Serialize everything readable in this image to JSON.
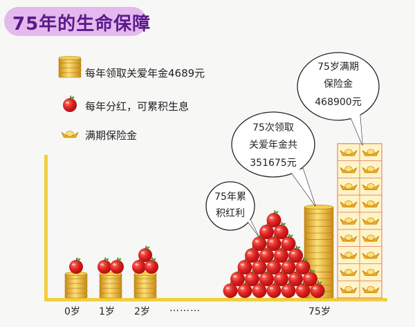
{
  "chart_data": {
    "type": "bar",
    "title": "75年的生命保障",
    "legend": [
      {
        "icon": "gold-coin-stack-icon",
        "label": "每年领取关爱年金4689元"
      },
      {
        "icon": "red-apple-icon",
        "label": "每年分红，可累积生息"
      },
      {
        "icon": "gold-ingot-icon",
        "label": "满期保险金"
      }
    ],
    "categories": [
      "0岁",
      "1岁",
      "2岁",
      "75岁"
    ],
    "ellipsis": "………",
    "series": [
      {
        "name": "每年领取关爱年金4689元",
        "coin_layers": [
          5,
          5,
          5,
          14
        ]
      },
      {
        "name": "每年分红，可累积生息",
        "apple_count": [
          1,
          2,
          3,
          28
        ]
      },
      {
        "name": "满期保险金",
        "ingot_rows": [
          0,
          0,
          0,
          9
        ]
      }
    ],
    "callouts": [
      {
        "lines": [
          "75年累",
          "积红利"
        ]
      },
      {
        "lines": [
          "75次领取",
          "关爱年金共",
          "351675元"
        ]
      },
      {
        "lines": [
          "75岁满期",
          "保险金",
          "468900元"
        ]
      }
    ],
    "colors": {
      "gold": "#f2c12e",
      "apple": "#e02222",
      "axis": "#f2cf3a",
      "title_bg": "#e3b9ee",
      "title_text": "#5a1a8a"
    }
  }
}
